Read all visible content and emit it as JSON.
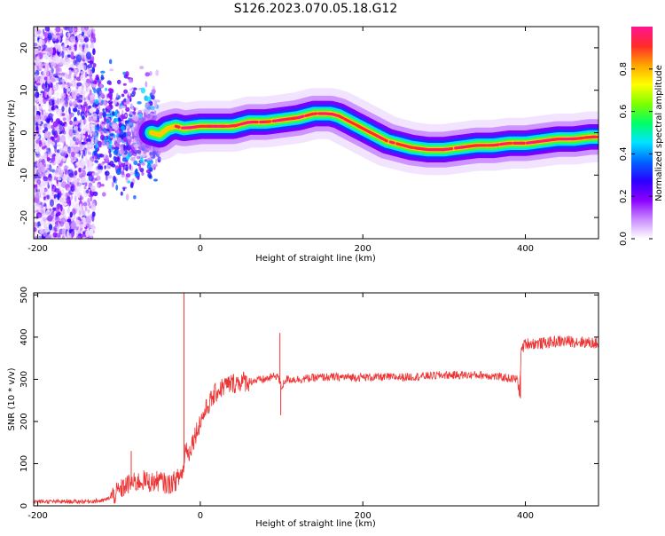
{
  "title": "S126.2023.070.05.18.G12",
  "colors": {
    "snr_line": "#ee3333",
    "axis": "#000000",
    "colormap": [
      "#ffffff",
      "#c98cff",
      "#8b00ff",
      "#2a00ff",
      "#0066ff",
      "#00e5ff",
      "#00ff66",
      "#7fff00",
      "#ffff00",
      "#ffa500",
      "#ff2a2a",
      "#ff1493"
    ]
  },
  "chart_data": [
    {
      "type": "heatmap",
      "xlabel": "Height of straight line (km)",
      "ylabel": "Frequency (Hz)",
      "xlim": [
        -205,
        490
      ],
      "ylim": [
        -25,
        25
      ],
      "xticks": [
        -200,
        0,
        200,
        400
      ],
      "yticks": [
        -20,
        -10,
        0,
        10,
        20
      ],
      "colorbar": {
        "label": "Normalized spectral amplitude",
        "range": [
          0,
          1
        ],
        "ticks": [
          0.0,
          0.2,
          0.4,
          0.6,
          0.8
        ]
      },
      "ridge": {
        "x": [
          -60,
          -50,
          -40,
          -30,
          -20,
          0,
          20,
          40,
          60,
          80,
          100,
          120,
          140,
          160,
          170,
          180,
          190,
          200,
          210,
          220,
          230,
          240,
          250,
          260,
          280,
          300,
          320,
          340,
          360,
          380,
          400,
          420,
          440,
          460,
          480,
          490
        ],
        "y": [
          0,
          -0.5,
          1,
          1.5,
          1,
          1.5,
          1.5,
          1.5,
          2.5,
          2.5,
          3,
          3.5,
          4.5,
          4.5,
          4,
          3,
          2,
          1,
          0,
          -1,
          -2,
          -2.5,
          -3,
          -3.5,
          -4,
          -4,
          -3.5,
          -3,
          -3,
          -2.5,
          -2.5,
          -2,
          -1.5,
          -1.5,
          -1,
          -1
        ]
      }
    },
    {
      "type": "line",
      "xlabel": "Height of straight line (km)",
      "ylabel": "SNR (10 * v/v)",
      "xlim": [
        -205,
        490
      ],
      "ylim": [
        0,
        505
      ],
      "xticks": [
        -200,
        0,
        200,
        400
      ],
      "yticks": [
        0,
        100,
        200,
        300,
        400,
        500
      ],
      "series": [
        {
          "x": [
            -205,
            -150,
            -120,
            -110,
            -100,
            -90,
            -80,
            -70,
            -60,
            -50,
            -40,
            -30,
            -25,
            -20,
            -18,
            -15,
            -10,
            0,
            10,
            20,
            30,
            40,
            50,
            60,
            80,
            95,
            100,
            105,
            120,
            150,
            200,
            250,
            300,
            350,
            390,
            393,
            395,
            400,
            420,
            440,
            460,
            490
          ],
          "y": [
            10,
            10,
            12,
            20,
            35,
            50,
            55,
            60,
            55,
            60,
            50,
            60,
            70,
            90,
            150,
            120,
            150,
            200,
            240,
            270,
            285,
            290,
            295,
            295,
            300,
            310,
            280,
            300,
            300,
            305,
            305,
            305,
            310,
            310,
            300,
            270,
            370,
            385,
            385,
            390,
            390,
            385
          ]
        }
      ],
      "spikes": [
        {
          "x": -20,
          "y": 505
        },
        {
          "x": 98,
          "y": 410
        },
        {
          "x": 99,
          "y": 215
        },
        {
          "x": 394,
          "y": 255
        },
        {
          "x": -85,
          "y": 130
        }
      ]
    }
  ]
}
